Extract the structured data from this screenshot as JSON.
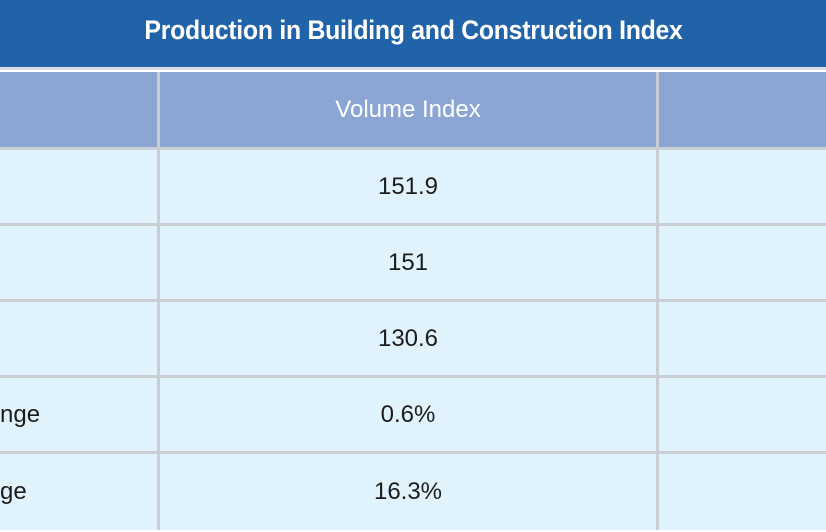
{
  "title": "Production in Building and Construction Index",
  "header": {
    "col0": "",
    "col1": "Volume Index",
    "col2": ""
  },
  "rows": [
    {
      "label": "",
      "value": "151.9",
      "extra": ""
    },
    {
      "label": "",
      "value": "151",
      "extra": ""
    },
    {
      "label": "",
      "value": "130.6",
      "extra": ""
    },
    {
      "label": "nge",
      "value": "0.6%",
      "extra": ""
    },
    {
      "label": "ge",
      "value": "16.3%",
      "extra": ""
    }
  ],
  "colors": {
    "title_bg": "#2163a8",
    "header_bg": "#8ba6d2",
    "row_bg": "#e0f3fc"
  }
}
